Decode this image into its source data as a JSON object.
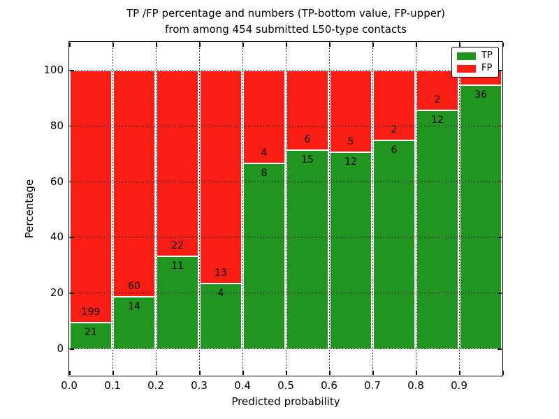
{
  "title": {
    "line1": "TP /FP percentage and numbers (TP-bottom value, FP-upper)",
    "line2": "from among 454 submitted L50-type contacts"
  },
  "chart_data": {
    "type": "bar",
    "stacked": true,
    "title_lines": [
      "TP /FP percentage and numbers (TP-bottom value, FP-upper)",
      "from among 454 submitted L50-type contacts"
    ],
    "xlabel": "Predicted probability",
    "ylabel": "Percentage",
    "xlim": [
      0.0,
      1.0
    ],
    "ylim": [
      -10,
      110
    ],
    "bin_width": 0.1,
    "x_tick_labels": [
      "0.0",
      "0.1",
      "0.2",
      "0.3",
      "0.4",
      "0.5",
      "0.6",
      "0.7",
      "0.8",
      "0.9"
    ],
    "y_tick_values": [
      0,
      20,
      40,
      60,
      80,
      100
    ],
    "grid": "dotted",
    "legend": {
      "position": "upper-right",
      "entries": [
        {
          "label": "TP",
          "color": "#20951f"
        },
        {
          "label": "FP",
          "color": "#fa1d14"
        }
      ]
    },
    "total_contacts": 454,
    "bars": [
      {
        "range": "0.0-0.1",
        "tp": 21,
        "fp": 199,
        "tp_pct": 9.5
      },
      {
        "range": "0.1-0.2",
        "tp": 14,
        "fp": 60,
        "tp_pct": 18.9
      },
      {
        "range": "0.2-0.3",
        "tp": 11,
        "fp": 22,
        "tp_pct": 33.3
      },
      {
        "range": "0.3-0.4",
        "tp": 4,
        "fp": 13,
        "tp_pct": 23.5
      },
      {
        "range": "0.4-0.5",
        "tp": 8,
        "fp": 4,
        "tp_pct": 66.7
      },
      {
        "range": "0.5-0.6",
        "tp": 15,
        "fp": 6,
        "tp_pct": 71.4
      },
      {
        "range": "0.6-0.7",
        "tp": 12,
        "fp": 5,
        "tp_pct": 70.6
      },
      {
        "range": "0.7-0.8",
        "tp": 6,
        "fp": 2,
        "tp_pct": 75.0
      },
      {
        "range": "0.8-0.9",
        "tp": 12,
        "fp": 2,
        "tp_pct": 85.7
      },
      {
        "range": "0.9-1.0",
        "tp": 36,
        "fp": null,
        "tp_pct": 94.7,
        "fp_label_hidden_by_legend": true
      }
    ]
  },
  "colors": {
    "tp": "#20951f",
    "fp": "#fa1d14",
    "grid": "#000000",
    "background": "#ffffff",
    "text": "#000000"
  }
}
